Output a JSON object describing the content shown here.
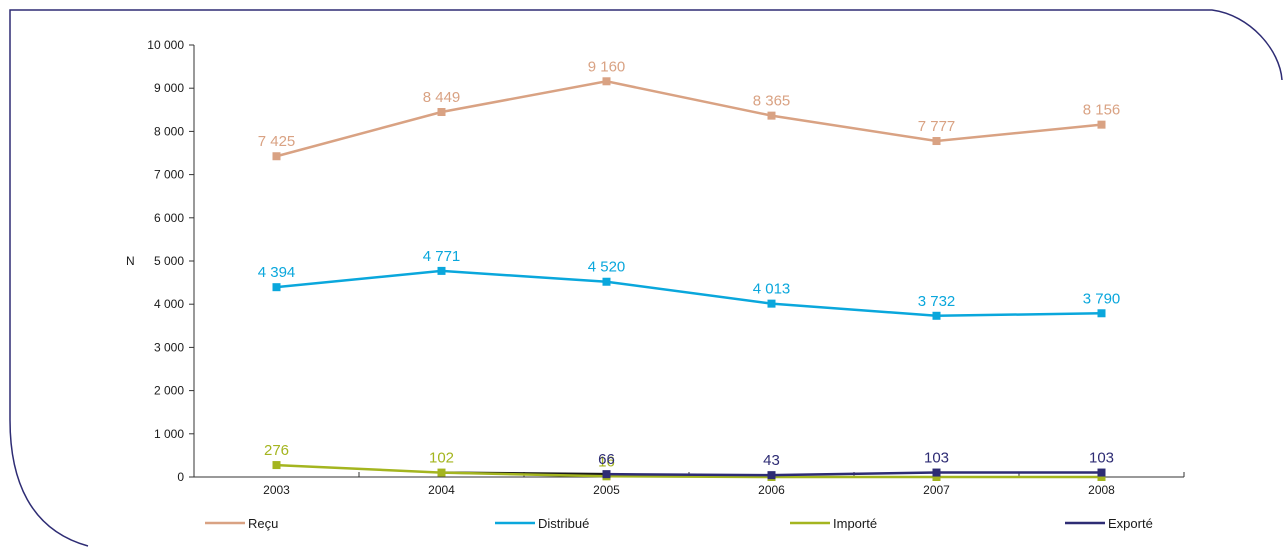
{
  "chart_data": {
    "type": "line",
    "title": "",
    "xlabel": "",
    "ylabel": "N",
    "ylim": [
      0,
      10000
    ],
    "yticks": [
      "0",
      "1 000",
      "2 000",
      "3 000",
      "4 000",
      "5 000",
      "6 000",
      "7 000",
      "8 000",
      "9 000",
      "10 000"
    ],
    "categories": [
      "2003",
      "2004",
      "2005",
      "2006",
      "2007",
      "2008"
    ],
    "grid": false,
    "legend_position": "bottom",
    "series": [
      {
        "name": "Reçu",
        "color": "#d9a283",
        "values": [
          7425,
          8449,
          9160,
          8365,
          7777,
          8156
        ],
        "labels": [
          "7 425",
          "8 449",
          "9 160",
          "8 365",
          "7 777",
          "8 156"
        ]
      },
      {
        "name": "Distribué",
        "color": "#0aa7dc",
        "values": [
          4394,
          4771,
          4520,
          4013,
          3732,
          3790
        ],
        "labels": [
          "4 394",
          "4 771",
          "4 520",
          "4 013",
          "3 732",
          "3 790"
        ]
      },
      {
        "name": "Importé",
        "color": "#a4b51f",
        "values": [
          276,
          102,
          16,
          0,
          0,
          0
        ],
        "labels": [
          "276",
          "102",
          "16",
          "",
          "",
          ""
        ]
      },
      {
        "name": "Exporté",
        "color": "#2e2c74",
        "values": [
          null,
          null,
          66,
          43,
          103,
          103
        ],
        "labels": [
          "",
          "",
          "66",
          "43",
          "103",
          "103"
        ]
      }
    ]
  }
}
